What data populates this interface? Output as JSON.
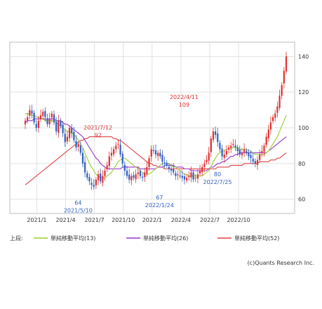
{
  "legend": {
    "prefix": "上段:",
    "items": [
      {
        "label": "単純移動平均(13)",
        "color": "#9acd32"
      },
      {
        "label": "単純移動平均(26)",
        "color": "#9932cc"
      },
      {
        "label": "単純移動平均(52)",
        "color": "#e04040"
      }
    ]
  },
  "credit": "(c)Quants Research Inc.",
  "chart_data": {
    "type": "candlestick",
    "x_ticks": [
      "2021/1",
      "2021/4",
      "2021/7",
      "2021/10",
      "2022/1",
      "2022/4",
      "2022/7",
      "2022/10"
    ],
    "y_ticks": [
      60,
      80,
      100,
      120,
      140
    ],
    "ylim": [
      52,
      148
    ],
    "grid": true,
    "colors": {
      "up": "#e03030",
      "down": "#3060c0",
      "text_red": "#e03030",
      "text_blue": "#3060c0"
    },
    "annotations": [
      {
        "date": "2021/7/12",
        "value": 92,
        "color": "red",
        "label_position": "above"
      },
      {
        "date": "2022/4/11",
        "value": 109,
        "color": "red",
        "label_position": "above"
      },
      {
        "date": "2021/5/10",
        "value": 64,
        "color": "blue",
        "label_position": "below"
      },
      {
        "date": "2022/1/24",
        "value": 67,
        "color": "blue",
        "label_position": "below"
      },
      {
        "date": "2022/7/25",
        "value": 80,
        "color": "blue",
        "label_position": "below"
      }
    ],
    "closes": [
      104,
      106,
      110,
      108,
      103,
      100,
      104,
      107,
      109,
      106,
      102,
      105,
      108,
      103,
      98,
      104,
      101,
      97,
      92,
      95,
      100,
      97,
      93,
      89,
      91,
      86,
      80,
      75,
      72,
      70,
      68,
      67,
      71,
      74,
      70,
      73,
      76,
      79,
      84,
      86,
      88,
      90,
      91,
      85,
      80,
      76,
      73,
      71,
      73,
      72,
      74,
      75,
      73,
      72,
      75,
      78,
      83,
      88,
      87,
      85,
      86,
      84,
      81,
      80,
      79,
      77,
      76,
      75,
      73,
      74,
      73,
      72,
      71,
      72,
      73,
      75,
      71,
      72,
      74,
      76,
      78,
      80,
      82,
      86,
      94,
      98,
      96,
      92,
      88,
      84,
      85,
      87,
      89,
      90,
      91,
      89,
      87,
      85,
      86,
      88,
      86,
      84,
      83,
      81,
      80,
      82,
      85,
      87,
      90,
      95,
      99,
      103,
      106,
      108,
      112,
      118,
      124,
      132,
      140
    ],
    "sma13": [
      108,
      108,
      108,
      107,
      107,
      106,
      106,
      105,
      105,
      104,
      104,
      104,
      104,
      104,
      103,
      102,
      101,
      100,
      99,
      98,
      98,
      97,
      96,
      95,
      93,
      91,
      89,
      86,
      83,
      80,
      78,
      76,
      74,
      73,
      72,
      72,
      72,
      73,
      74,
      75,
      77,
      79,
      81,
      82,
      83,
      83,
      82,
      81,
      80,
      79,
      78,
      77,
      76,
      75,
      74,
      74,
      74,
      75,
      76,
      77,
      78,
      79,
      80,
      80,
      80,
      80,
      79,
      78,
      78,
      77,
      76,
      75,
      74,
      74,
      73,
      73,
      73,
      73,
      73,
      73,
      73,
      74,
      75,
      76,
      78,
      81,
      83,
      85,
      86,
      87,
      87,
      88,
      88,
      88,
      89,
      89,
      89,
      88,
      88,
      88,
      88,
      87,
      87,
      86,
      85,
      85,
      85,
      85,
      85,
      86,
      87,
      89,
      91,
      93,
      95,
      98,
      101,
      104,
      107
    ],
    "sma26": [
      103,
      104,
      104,
      104,
      105,
      105,
      105,
      105,
      105,
      105,
      105,
      105,
      105,
      105,
      104,
      104,
      104,
      103,
      102,
      102,
      101,
      100,
      99,
      98,
      97,
      96,
      95,
      93,
      91,
      89,
      87,
      85,
      83,
      82,
      80,
      79,
      78,
      77,
      77,
      77,
      77,
      77,
      77,
      77,
      78,
      78,
      78,
      78,
      78,
      78,
      78,
      78,
      77,
      77,
      77,
      77,
      77,
      77,
      77,
      77,
      78,
      78,
      78,
      79,
      79,
      79,
      79,
      79,
      78,
      78,
      78,
      78,
      77,
      77,
      77,
      76,
      76,
      76,
      76,
      76,
      76,
      76,
      76,
      77,
      78,
      78,
      79,
      80,
      80,
      81,
      81,
      82,
      83,
      84,
      84,
      85,
      85,
      86,
      86,
      86,
      86,
      86,
      86,
      86,
      86,
      86,
      86,
      86,
      86,
      86,
      87,
      88,
      89,
      90,
      91,
      92,
      93,
      94,
      95
    ],
    "sma52": [
      68,
      69,
      70,
      71,
      72,
      73,
      74,
      75,
      76,
      77,
      78,
      79,
      80,
      81,
      82,
      83,
      84,
      85,
      86,
      87,
      88,
      89,
      90,
      91,
      92,
      93,
      93,
      94,
      94,
      95,
      95,
      95,
      95,
      95,
      95,
      95,
      95,
      95,
      95,
      95,
      94,
      94,
      93,
      93,
      92,
      91,
      90,
      89,
      88,
      87,
      86,
      85,
      84,
      83,
      82,
      81,
      80,
      80,
      79,
      79,
      78,
      78,
      78,
      77,
      77,
      77,
      77,
      77,
      77,
      77,
      77,
      77,
      77,
      77,
      77,
      77,
      77,
      77,
      77,
      77,
      77,
      77,
      77,
      77,
      77,
      77,
      77,
      78,
      78,
      78,
      78,
      78,
      78,
      79,
      79,
      79,
      79,
      79,
      79,
      80,
      80,
      80,
      80,
      80,
      80,
      80,
      81,
      81,
      81,
      81,
      81,
      82,
      82,
      82,
      83,
      83,
      84,
      85,
      86
    ]
  }
}
